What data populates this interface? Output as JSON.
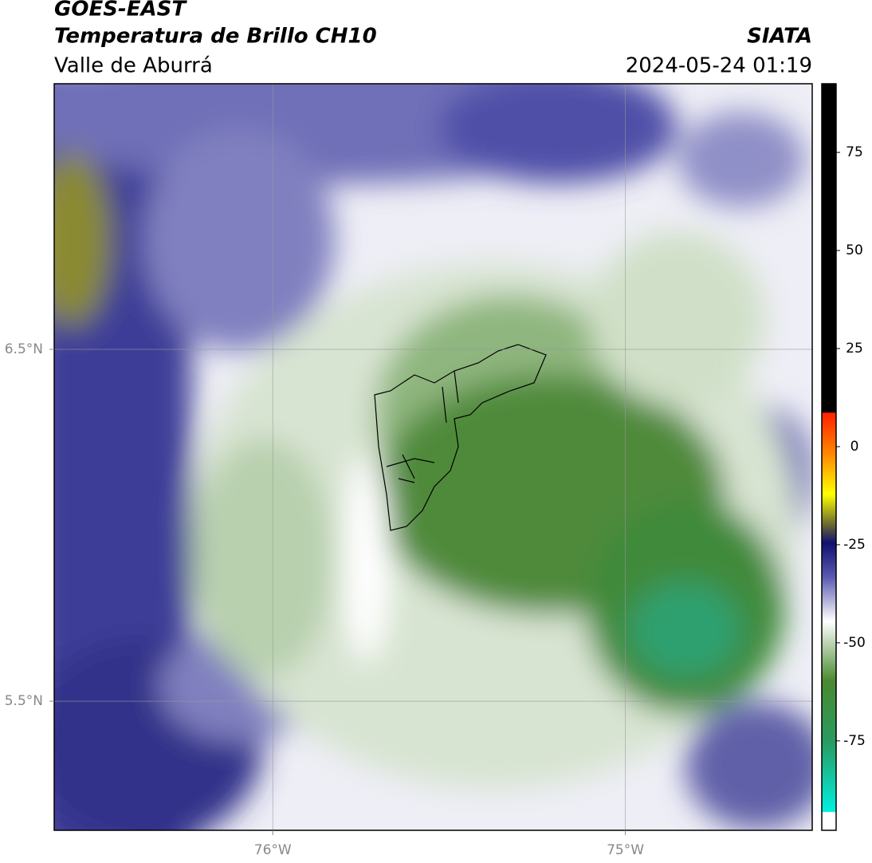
{
  "header": {
    "title": "GOES-EAST",
    "subtitle": "Temperatura de Brillo CH10",
    "region": "Valle de Aburrá",
    "source": "SIATA",
    "datetime": "2024-05-24 01:19"
  },
  "map": {
    "xlim": [
      -76.62,
      -74.47
    ],
    "ylim": [
      5.133,
      7.255
    ],
    "xticks": [
      {
        "value": -76,
        "label": "76°W"
      },
      {
        "value": -75,
        "label": "75°W"
      }
    ],
    "yticks": [
      {
        "value": 6.5,
        "label": "6.5°N"
      },
      {
        "value": 5.5,
        "label": "5.5°N"
      }
    ],
    "grid": true
  },
  "colorbar": {
    "lim": [
      -97.8,
      92.5
    ],
    "ticks": [
      75,
      50,
      25,
      0,
      -25,
      -50,
      -75
    ]
  }
}
